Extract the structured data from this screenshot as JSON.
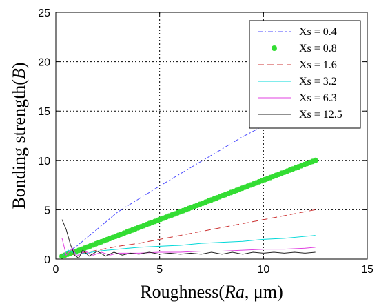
{
  "chart_data": {
    "type": "line",
    "title": "",
    "xlabel": {
      "prefix": "Roughness(",
      "italic": "Ra",
      "suffix": ", μm)"
    },
    "ylabel": {
      "prefix": "Bonding strength(",
      "italic": "B",
      "suffix": ")"
    },
    "xlim": [
      0,
      15
    ],
    "ylim": [
      0,
      25
    ],
    "xticks": [
      "0",
      "5",
      "10",
      "15"
    ],
    "yticks": [
      "0",
      "5",
      "10",
      "15",
      "20",
      "25"
    ],
    "grid": true,
    "legend_position": "top-right",
    "series": [
      {
        "name": "Xs = 0.4",
        "color": "#4a4aff",
        "style": "dashdot",
        "x": [
          0.3,
          1.0,
          3.0,
          5.0,
          7.0,
          9.0,
          10.0,
          11.0,
          11.6
        ],
        "y": [
          0.4,
          1.3,
          4.8,
          7.4,
          9.9,
          12.4,
          13.5,
          14.6,
          15.2
        ]
      },
      {
        "name": "Xs = 0.8",
        "color": "#33dd33",
        "style": "dots",
        "x": [
          0.3,
          1.0,
          2.0,
          3.0,
          4.0,
          5.0,
          6.0,
          7.0,
          8.0,
          9.0,
          10.0,
          11.0,
          12.0,
          12.5
        ],
        "y": [
          0.3,
          0.8,
          1.6,
          2.4,
          3.2,
          4.0,
          4.8,
          5.6,
          6.4,
          7.2,
          8.0,
          8.8,
          9.6,
          10.0
        ]
      },
      {
        "name": "Xs = 1.6",
        "color": "#cc3333",
        "style": "dashed",
        "x": [
          0.3,
          1.0,
          2.0,
          3.0,
          4.0,
          5.0,
          6.0,
          7.0,
          8.0,
          9.0,
          10.0,
          11.0,
          12.0,
          12.5
        ],
        "y": [
          0.5,
          0.5,
          0.9,
          1.3,
          1.6,
          2.0,
          2.4,
          2.8,
          3.2,
          3.6,
          4.0,
          4.4,
          4.8,
          5.0
        ]
      },
      {
        "name": "Xs = 3.2",
        "color": "#00d8d8",
        "style": "solid",
        "x": [
          0.3,
          0.6,
          1.0,
          1.5,
          2.0,
          3.0,
          4.0,
          5.0,
          6.0,
          7.0,
          8.0,
          9.0,
          10.0,
          11.0,
          12.0,
          12.5
        ],
        "y": [
          0.3,
          0.9,
          0.5,
          0.6,
          0.8,
          1.0,
          1.2,
          1.3,
          1.4,
          1.6,
          1.7,
          1.8,
          2.0,
          2.1,
          2.3,
          2.4
        ]
      },
      {
        "name": "Xs = 6.3",
        "color": "#e040e0",
        "style": "solid",
        "x": [
          0.3,
          0.5,
          0.8,
          1.0,
          1.4,
          1.8,
          2.2,
          2.6,
          3.0,
          4.0,
          5.0,
          6.0,
          7.0,
          8.0,
          9.0,
          10.0,
          11.0,
          12.0,
          12.5
        ],
        "y": [
          2.1,
          0.4,
          1.1,
          0.3,
          0.8,
          0.4,
          0.7,
          0.4,
          0.6,
          0.6,
          0.7,
          0.7,
          0.8,
          0.8,
          0.9,
          1.0,
          1.0,
          1.1,
          1.2
        ]
      },
      {
        "name": "Xs = 12.5",
        "color": "#222222",
        "style": "solid",
        "x": [
          0.3,
          0.5,
          0.7,
          0.9,
          1.1,
          1.3,
          1.6,
          2.0,
          2.4,
          2.8,
          3.2,
          3.6,
          4.0,
          4.5,
          5.0,
          5.5,
          6.0,
          6.5,
          7.0,
          7.5,
          8.0,
          8.5,
          9.0,
          9.5,
          10.0,
          10.5,
          11.0,
          11.5,
          12.0,
          12.5
        ],
        "y": [
          4.0,
          3.0,
          1.5,
          0.4,
          0.1,
          0.9,
          0.3,
          0.8,
          0.3,
          0.7,
          0.4,
          0.6,
          0.5,
          0.7,
          0.5,
          0.6,
          0.5,
          0.6,
          0.5,
          0.7,
          0.5,
          0.7,
          0.5,
          0.7,
          0.6,
          0.7,
          0.6,
          0.7,
          0.6,
          0.7
        ]
      }
    ]
  }
}
